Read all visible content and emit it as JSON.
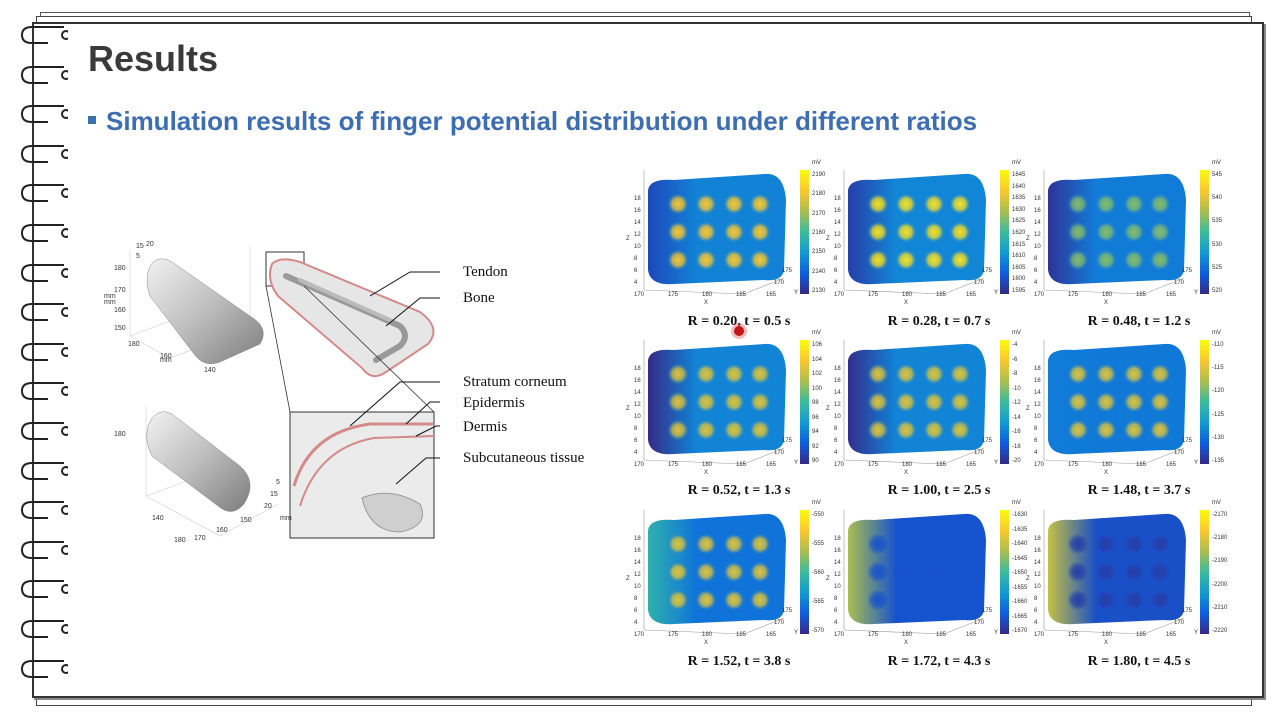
{
  "slide": {
    "title": "Results",
    "bullet": "Simulation results of finger potential distribution under different ratios"
  },
  "figure_left": {
    "labels": [
      "Tendon",
      "Bone",
      "Stratum corneum",
      "Epidermis",
      "Dermis",
      "Subcutaneous tissue"
    ],
    "axis_texts": [
      "mm",
      "15",
      "20",
      "5",
      "180",
      "170",
      "160",
      "150",
      "180",
      "160",
      "140",
      "mm",
      "mm",
      "180",
      "140",
      "180",
      "170",
      "160",
      "150",
      "20",
      "15",
      "5",
      "mm"
    ]
  },
  "plots": [
    {
      "caption": "R = 0.20,  t = 0.5 s",
      "unit": "mV",
      "scale": [
        "2190",
        "2180",
        "2170",
        "2160",
        "2150",
        "2140",
        "2130"
      ],
      "hot": 0.9,
      "edge": 0.15
    },
    {
      "caption": "R = 0.28, t = 0.7 s",
      "unit": "mV",
      "scale": [
        "1645",
        "1640",
        "1635",
        "1630",
        "1625",
        "1620",
        "1615",
        "1610",
        "1605",
        "1600",
        "1595"
      ],
      "hot": 0.95,
      "edge": 0.1
    },
    {
      "caption": "R = 0.48, t = 1.2 s",
      "unit": "mV",
      "scale": [
        "545",
        "540",
        "535",
        "530",
        "525",
        "520"
      ],
      "hot": 0.7,
      "edge": 0.05
    },
    {
      "caption": "R = 0.52, t = 1.3 s",
      "unit": "mV",
      "scale": [
        "106",
        "104",
        "102",
        "100",
        "98",
        "96",
        "94",
        "92",
        "90"
      ],
      "hot": 0.85,
      "edge": 0.0
    },
    {
      "caption": "R = 1.00, t = 2.5 s",
      "unit": "mV",
      "scale": [
        "-4",
        "-6",
        "-8",
        "-10",
        "-12",
        "-14",
        "-16",
        "-18",
        "-20"
      ],
      "hot": 0.85,
      "edge": 0.02
    },
    {
      "caption": "R = 1.48, t = 3.7 s",
      "unit": "mV",
      "scale": [
        "-110",
        "-115",
        "-120",
        "-125",
        "-130",
        "-135"
      ],
      "hot": 0.85,
      "edge": 0.35
    },
    {
      "caption": "R = 1.52, t = 3.8 s",
      "unit": "mV",
      "scale": [
        "-550",
        "-555",
        "-560",
        "-565",
        "-570"
      ],
      "hot": 0.85,
      "edge": 0.55
    },
    {
      "caption": "R = 1.72, t = 4.3 s",
      "unit": "mV",
      "scale": [
        "-1630",
        "-1635",
        "-1640",
        "-1645",
        "-1650",
        "-1655",
        "-1660",
        "-1665",
        "-1670"
      ],
      "hot": 0.2,
      "edge": 0.75
    },
    {
      "caption": "R = 1.80, t = 4.5 s",
      "unit": "mV",
      "scale": [
        "-2170",
        "-2180",
        "-2190",
        "-2200",
        "-2210",
        "-2220"
      ],
      "hot": 0.1,
      "edge": 0.8
    }
  ],
  "plot_axes": {
    "z_label": "Z",
    "x_label": "X",
    "y_label": "Y",
    "z_ticks": [
      "18",
      "16",
      "14",
      "12",
      "10",
      "8",
      "6",
      "4"
    ],
    "x_ticks": [
      "170",
      "175",
      "180",
      "185"
    ],
    "y_ticks": [
      "165",
      "170",
      "175"
    ]
  },
  "colors": {
    "title": "#3a3a3a",
    "bullet": "#3d6db3",
    "cursor": "#c01818"
  }
}
